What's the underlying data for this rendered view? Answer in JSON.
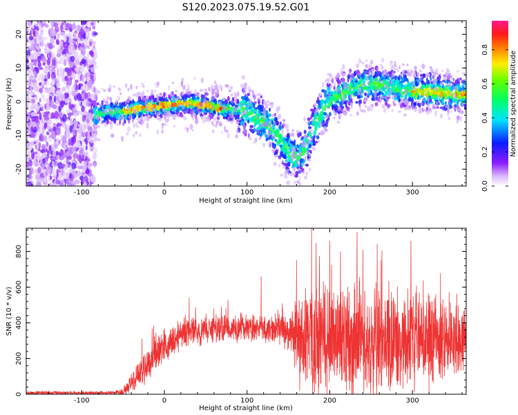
{
  "title": "S120.2023.075.19.52.G01",
  "chart_data": [
    {
      "type": "heatmap",
      "xlabel": "Height of straight line (km)",
      "ylabel": "Frequency (Hz)",
      "xlim": [
        -167,
        365
      ],
      "ylim": [
        -25,
        24
      ],
      "xticks": [
        -100,
        0,
        100,
        200,
        300
      ],
      "yticks": [
        -20,
        -10,
        0,
        10,
        20
      ],
      "colorbar": {
        "label": "Normalized spectral amplitude",
        "range": [
          0.0,
          0.97
        ],
        "ticks": [
          0.0,
          0.2,
          0.4,
          0.6,
          0.8
        ],
        "colormap": "rainbow (white - violet - blue - cyan - green - yellow - red - pink)"
      },
      "ridge": {
        "x": [
          -85,
          -70,
          -50,
          -30,
          -10,
          10,
          30,
          50,
          65,
          70,
          90,
          100,
          110,
          120,
          130,
          140,
          150,
          160,
          170,
          180,
          190,
          200,
          220,
          240,
          260,
          280,
          300,
          320,
          340,
          360
        ],
        "y": [
          -4,
          -3,
          -3,
          -2,
          -1.5,
          -1,
          -0.5,
          -1,
          -2,
          -2,
          -2.5,
          -3,
          -5,
          -6,
          -8,
          -11,
          -15,
          -17,
          -14,
          -8,
          -3,
          0,
          3,
          5,
          5,
          4,
          3,
          3,
          2.5,
          2
        ]
      },
      "grid": false
    },
    {
      "type": "line",
      "xlabel": "Height of straight line (km)",
      "ylabel": "SNR (10 * v/v)",
      "xlim": [
        -167,
        365
      ],
      "ylim": [
        0,
        930
      ],
      "xticks": [
        -100,
        0,
        100,
        200,
        300
      ],
      "yticks": [
        0,
        200,
        400,
        600,
        800
      ],
      "series": [
        {
          "color": "#ee3333",
          "envelope": {
            "x": [
              -167,
              -60,
              -50,
              -40,
              -30,
              -20,
              -10,
              0,
              10,
              20,
              40,
              60,
              80,
              100,
              120,
              140,
              155,
              160,
              175,
              200,
              230,
              250,
              270,
              300,
              330,
              365
            ],
            "baseline": [
              8,
              8,
              15,
              60,
              120,
              170,
              220,
              270,
              300,
              340,
              360,
              370,
              370,
              370,
              370,
              360,
              360,
              300,
              300,
              300,
              300,
              300,
              300,
              300,
              300,
              310
            ],
            "spread": [
              8,
              8,
              20,
              40,
              60,
              80,
              80,
              70,
              80,
              60,
              70,
              60,
              60,
              60,
              60,
              80,
              100,
              200,
              250,
              250,
              250,
              240,
              240,
              220,
              200,
              120
            ],
            "peaks_x": [
              -27,
              0,
              30,
              60,
              77,
              117,
              178,
              200,
              213,
              233,
              262,
              298,
              334
            ],
            "peaks_y": [
              310,
              370,
              540,
              480,
              530,
              660,
              930,
              860,
              800,
              910,
              750,
              860,
              680
            ]
          }
        }
      ],
      "grid": false
    }
  ]
}
